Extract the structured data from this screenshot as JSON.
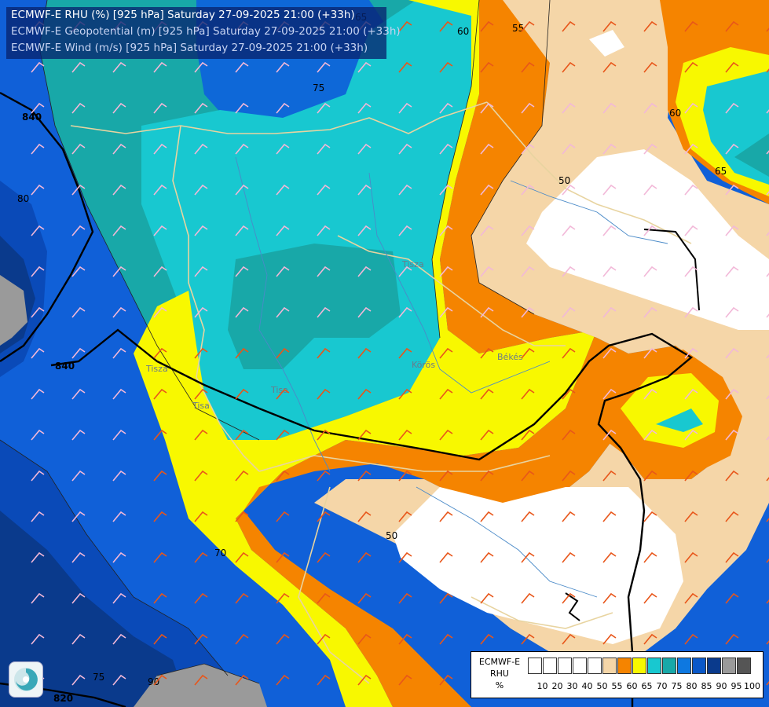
{
  "header": {
    "line1": "ECMWF-E RHU (%) [925 hPa] Saturday 27-09-2025 21:00 (+33h)",
    "line2": "ECMWF-E Geopotential (m) [925 hPa] Saturday 27-09-2025 21:00 (+33h)",
    "line3": "ECMWF-E Wind (m/s) [925 hPa] Saturday 27-09-2025 21:00 (+33h)"
  },
  "legend": {
    "title_line1": "ECMWF-E",
    "title_line2": "RHU",
    "unit": "%",
    "ticks": [
      "10",
      "20",
      "30",
      "40",
      "50",
      "55",
      "60",
      "65",
      "70",
      "75",
      "80",
      "85",
      "90",
      "95",
      "100"
    ],
    "colors": [
      "#ffffff",
      "#ffffff",
      "#ffffff",
      "#ffffff",
      "#ffffff",
      "#f5d6a8",
      "#f58400",
      "#f8f800",
      "#18c8d0",
      "#18a8a8",
      "#0e78e0",
      "#0a58c8",
      "#0a3a8c",
      "#9a9a9a",
      "#555555"
    ]
  },
  "contour_labels": {
    "rh": [
      "65",
      "60",
      "55",
      "60",
      "65",
      "75",
      "80",
      "50",
      "70",
      "50",
      "75",
      "55",
      "90"
    ],
    "geopotential": [
      "840",
      "840",
      "820"
    ]
  },
  "place_labels": [
    "Tisza",
    "Körös",
    "Békés",
    "Tisa",
    "Tisa",
    "Tisza"
  ]
}
